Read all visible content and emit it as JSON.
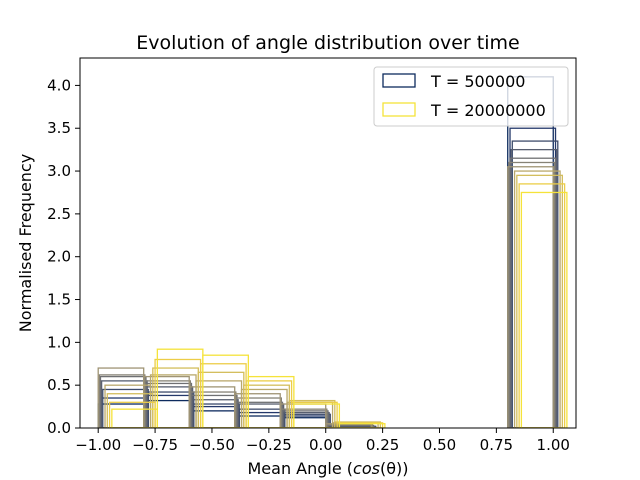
{
  "chart_data": {
    "type": "step-histogram",
    "title": "Evolution of angle distribution over time",
    "xlabel_prefix": "Mean Angle (",
    "xlabel_math": "cos",
    "xlabel_theta": "(θ)",
    "xlabel_suffix": ")",
    "ylabel": "Normalised Frequency",
    "xlim": [
      -1.08,
      1.1
    ],
    "ylim": [
      0.0,
      4.32
    ],
    "xticks": [
      -1.0,
      -0.75,
      -0.5,
      -0.25,
      0.0,
      0.25,
      0.5,
      0.75,
      1.0
    ],
    "xtick_labels": [
      "−1.00",
      "−0.75",
      "−0.50",
      "−0.25",
      "0.00",
      "0.25",
      "0.50",
      "0.75",
      "1.00"
    ],
    "yticks": [
      0.0,
      0.5,
      1.0,
      1.5,
      2.0,
      2.5,
      3.0,
      3.5,
      4.0
    ],
    "ytick_labels": [
      "0.0",
      "0.5",
      "1.0",
      "1.5",
      "2.0",
      "2.5",
      "3.0",
      "3.5",
      "4.0"
    ],
    "legend": {
      "placement": "top-right",
      "entries": [
        {
          "label": "T = 500000",
          "color": "#0d2b5e"
        },
        {
          "label": "T = 20000000",
          "color": "#f5e33a"
        }
      ]
    },
    "colors": [
      "#0d2b5e",
      "#24386a",
      "#3d4b6b",
      "#575e6f",
      "#6f7073",
      "#868276",
      "#9f9474",
      "#b9a86c",
      "#d3bd5c",
      "#eccd48",
      "#f5e33a"
    ],
    "series": [
      {
        "name": "T = 500000",
        "x_start": -1.0,
        "bin_width": 0.2,
        "values": [
          0.28,
          0.32,
          0.2,
          0.14,
          0.12,
          0.0,
          0.0,
          0.0,
          0.0,
          4.1
        ]
      },
      {
        "x_start": -0.99,
        "bin_width": 0.2,
        "values": [
          0.35,
          0.38,
          0.25,
          0.18,
          0.14,
          0.01,
          0.0,
          0.0,
          0.0,
          3.5
        ]
      },
      {
        "x_start": -0.98,
        "bin_width": 0.2,
        "values": [
          0.45,
          0.42,
          0.28,
          0.22,
          0.16,
          0.02,
          0.0,
          0.0,
          0.0,
          3.35
        ]
      },
      {
        "x_start": -0.985,
        "bin_width": 0.2,
        "values": [
          0.55,
          0.48,
          0.33,
          0.28,
          0.18,
          0.02,
          0.0,
          0.0,
          0.0,
          3.25
        ]
      },
      {
        "x_start": -0.99,
        "bin_width": 0.2,
        "values": [
          0.6,
          0.52,
          0.38,
          0.3,
          0.2,
          0.03,
          0.0,
          0.0,
          0.0,
          3.15
        ]
      },
      {
        "x_start": -0.995,
        "bin_width": 0.2,
        "values": [
          0.62,
          0.55,
          0.42,
          0.35,
          0.22,
          0.04,
          0.0,
          0.0,
          0.0,
          3.1
        ]
      },
      {
        "x_start": -1.0,
        "bin_width": 0.2,
        "values": [
          0.7,
          0.6,
          0.48,
          0.4,
          0.28,
          0.05,
          0.0,
          0.0,
          0.0,
          3.05
        ]
      },
      {
        "x_start": -0.97,
        "bin_width": 0.2,
        "values": [
          0.5,
          0.62,
          0.55,
          0.45,
          0.3,
          0.06,
          0.0,
          0.0,
          0.0,
          3.0
        ]
      },
      {
        "x_start": -0.96,
        "bin_width": 0.2,
        "values": [
          0.4,
          0.7,
          0.65,
          0.5,
          0.32,
          0.07,
          0.0,
          0.0,
          0.0,
          2.95
        ]
      },
      {
        "x_start": -0.95,
        "bin_width": 0.2,
        "values": [
          0.3,
          0.8,
          0.75,
          0.55,
          0.3,
          0.06,
          0.0,
          0.0,
          0.0,
          2.85
        ]
      },
      {
        "name": "T = 20000000",
        "x_start": -0.94,
        "bin_width": 0.2,
        "values": [
          0.22,
          0.92,
          0.85,
          0.6,
          0.28,
          0.05,
          0.0,
          0.0,
          0.0,
          2.75
        ]
      }
    ]
  }
}
